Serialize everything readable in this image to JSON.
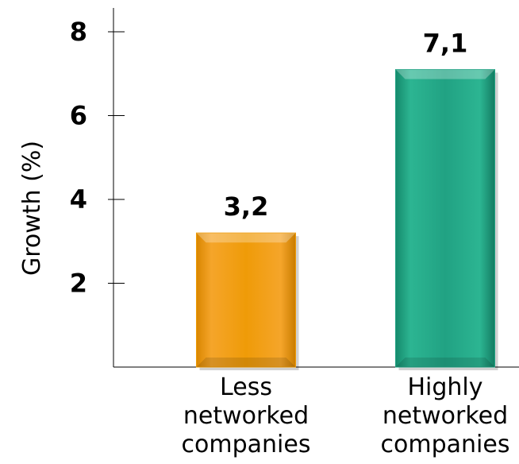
{
  "chart_data": {
    "type": "bar",
    "title": "",
    "xlabel": "",
    "ylabel": "Growth (%)",
    "ylim": [
      0,
      8.4
    ],
    "yticks": [
      2,
      4,
      6,
      8
    ],
    "grid": false,
    "legend": "none",
    "categories": [
      [
        "Less",
        "networked",
        "companies"
      ],
      [
        "Highly",
        "networked",
        "companies"
      ]
    ],
    "values": [
      3.2,
      7.1
    ],
    "value_labels": [
      "3,2",
      "7,1"
    ],
    "colors": [
      "#ee9a06",
      "#21a283"
    ]
  }
}
